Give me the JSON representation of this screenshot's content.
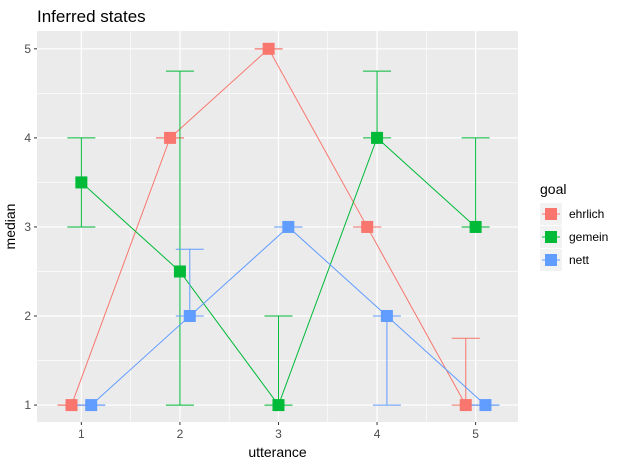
{
  "chart_data": {
    "type": "line",
    "title": "Inferred states",
    "xlabel": "utterance",
    "ylabel": "median",
    "x": [
      1,
      2,
      3,
      4,
      5
    ],
    "x_ticks": [
      "1",
      "2",
      "3",
      "4",
      "5"
    ],
    "y_ticks": [
      "1",
      "2",
      "3",
      "4",
      "5"
    ],
    "xlim": [
      0.55,
      5.43
    ],
    "ylim": [
      0.81,
      5.2
    ],
    "grid": true,
    "legend_position": "right",
    "legend_title": "goal",
    "dodge": 0.1,
    "series": [
      {
        "name": "ehrlich",
        "color": "#F8766D",
        "values": [
          1,
          4,
          5,
          3,
          1
        ],
        "error_low": [
          1,
          4,
          5,
          3,
          1
        ],
        "error_high": [
          1,
          4,
          5,
          3,
          1.75
        ]
      },
      {
        "name": "gemein",
        "color": "#00BA38",
        "values": [
          3.5,
          2.5,
          1,
          4,
          3
        ],
        "error_low": [
          3,
          1,
          1,
          4,
          3
        ],
        "error_high": [
          4,
          4.75,
          2,
          4.75,
          4
        ]
      },
      {
        "name": "nett",
        "color": "#619CFF",
        "values": [
          1,
          2,
          3,
          2,
          1
        ],
        "error_low": [
          1,
          2,
          3,
          1,
          1
        ],
        "error_high": [
          1,
          2.75,
          3,
          2,
          1
        ]
      }
    ]
  }
}
